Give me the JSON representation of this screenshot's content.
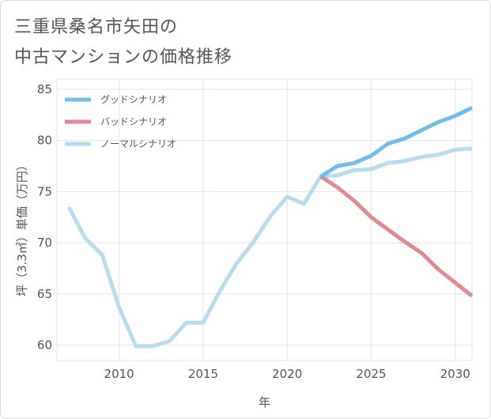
{
  "title": {
    "line1": "三重県桑名市矢田の",
    "line2": "中古マンションの価格推移"
  },
  "chart_data": {
    "type": "line",
    "xlabel": "年",
    "ylabel": "坪（3.3㎡）単価（万円）",
    "xlim": [
      2006.3,
      2031
    ],
    "ylim": [
      58.5,
      86
    ],
    "xticks": [
      2010,
      2015,
      2020,
      2025,
      2030
    ],
    "yticks": [
      60,
      65,
      70,
      75,
      80,
      85
    ],
    "grid": true,
    "legend_position": "top-left",
    "series": [
      {
        "name": "グッドシナリオ",
        "color": "#74bdea",
        "x": [
          2022,
          2023,
          2024,
          2025,
          2026,
          2027,
          2028,
          2029,
          2030,
          2031
        ],
        "y": [
          76.5,
          77.5,
          77.8,
          78.5,
          79.7,
          80.2,
          81.0,
          81.8,
          82.4,
          83.2
        ]
      },
      {
        "name": "バッドシナリオ",
        "color": "#e08b93",
        "x": [
          2022,
          2023,
          2024,
          2025,
          2026,
          2027,
          2028,
          2029,
          2030,
          2031
        ],
        "y": [
          76.5,
          75.4,
          74.1,
          72.5,
          71.3,
          70.1,
          69.0,
          67.4,
          66.1,
          64.8
        ]
      },
      {
        "name": "ノーマルシナリオ",
        "color": "#b9dcec",
        "x": [
          2007,
          2008,
          2009,
          2010,
          2011,
          2012,
          2013,
          2014,
          2015,
          2016,
          2017,
          2018,
          2019,
          2020,
          2021,
          2022,
          2023,
          2024,
          2025,
          2026,
          2027,
          2028,
          2029,
          2030,
          2031
        ],
        "y": [
          73.5,
          70.4,
          68.8,
          63.7,
          59.9,
          59.9,
          60.4,
          62.2,
          62.2,
          65.3,
          68.0,
          70.1,
          72.6,
          74.5,
          73.8,
          76.5,
          76.6,
          77.1,
          77.2,
          77.8,
          78.0,
          78.4,
          78.6,
          79.1,
          79.2
        ]
      }
    ]
  }
}
